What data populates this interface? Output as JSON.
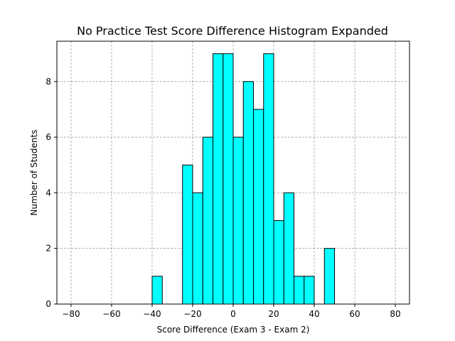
{
  "chart_data": {
    "type": "bar",
    "title": "No Practice Test Score Difference Histogram Expanded",
    "xlabel": "Score Difference (Exam 3 - Exam 2)",
    "ylabel": "Number of Students",
    "xlim": [
      -87,
      87
    ],
    "ylim": [
      0,
      9.45
    ],
    "xticks": [
      -80,
      -60,
      -40,
      -20,
      0,
      20,
      40,
      60,
      80
    ],
    "yticks": [
      0,
      2,
      4,
      6,
      8
    ],
    "grid": true,
    "bin_width": 5,
    "bars": [
      {
        "start": -40,
        "count": 1
      },
      {
        "start": -25,
        "count": 5
      },
      {
        "start": -20,
        "count": 4
      },
      {
        "start": -15,
        "count": 6
      },
      {
        "start": -10,
        "count": 9
      },
      {
        "start": -5,
        "count": 9
      },
      {
        "start": 0,
        "count": 6
      },
      {
        "start": 5,
        "count": 8
      },
      {
        "start": 10,
        "count": 7
      },
      {
        "start": 15,
        "count": 9
      },
      {
        "start": 20,
        "count": 3
      },
      {
        "start": 25,
        "count": 4
      },
      {
        "start": 30,
        "count": 1
      },
      {
        "start": 35,
        "count": 1
      },
      {
        "start": 45,
        "count": 2
      }
    ],
    "bar_color": "#00ffff",
    "edge_color": "#000000",
    "grid_color": "#808080"
  }
}
